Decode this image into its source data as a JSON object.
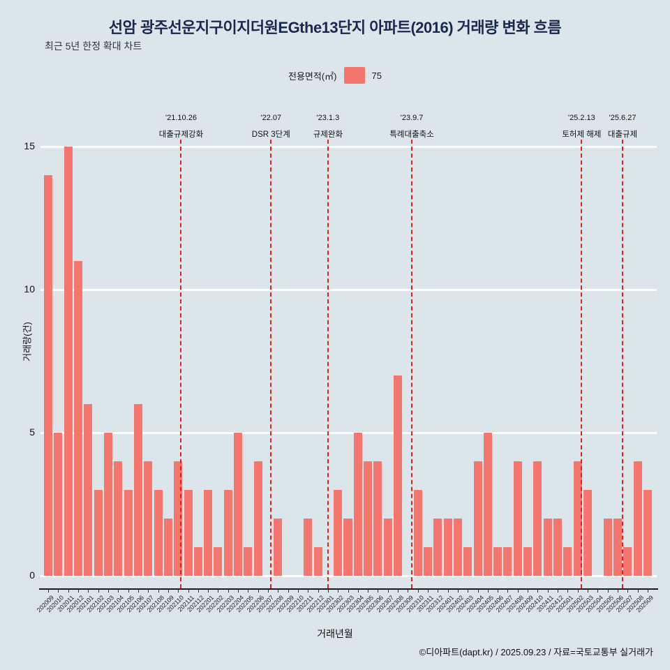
{
  "header": {
    "title": "선암 광주선운지구이지더원EGthe13단지 아파트(2016) 거래량 변화 흐름",
    "subtitle": "최근 5년 한정 확대 차트"
  },
  "legend": {
    "label": "전용면적(㎡)",
    "value": "75",
    "swatch_color": "#f4766e"
  },
  "footer": {
    "credit": "©디아파트(dapt.kr) / 2025.09.23 / 자료=국토교통부 실거래가"
  },
  "chart_data": {
    "type": "bar",
    "title": "선암 광주선운지구이지더원EGthe13단지 아파트(2016) 거래량 변화 흐름",
    "xlabel": "거래년월",
    "ylabel": "거래량(건)",
    "ylim": [
      0,
      15
    ],
    "yticks": [
      0,
      5,
      10,
      15
    ],
    "bar_color": "#f4766e",
    "grid": "horizontal-white-lines",
    "legend_position": "top-center",
    "categories": [
      "202009",
      "202010",
      "202011",
      "202012",
      "202101",
      "202102",
      "202103",
      "202104",
      "202105",
      "202106",
      "202107",
      "202108",
      "202109",
      "202110",
      "202111",
      "202112",
      "202201",
      "202202",
      "202203",
      "202204",
      "202205",
      "202206",
      "202207",
      "202208",
      "202209",
      "202210",
      "202211",
      "202212",
      "202301",
      "202302",
      "202303",
      "202304",
      "202305",
      "202306",
      "202307",
      "202308",
      "202309",
      "202310",
      "202311",
      "202312",
      "202401",
      "202402",
      "202403",
      "202404",
      "202405",
      "202406",
      "202407",
      "202408",
      "202409",
      "202410",
      "202411",
      "202412",
      "202501",
      "202502",
      "202503",
      "202504",
      "202505",
      "202506",
      "202507",
      "202508",
      "202509"
    ],
    "values": [
      14,
      5,
      15,
      11,
      6,
      3,
      5,
      4,
      3,
      6,
      4,
      3,
      2,
      4,
      3,
      1,
      3,
      1,
      3,
      5,
      1,
      4,
      0,
      2,
      0,
      0,
      2,
      1,
      0,
      3,
      2,
      5,
      4,
      4,
      2,
      7,
      0,
      3,
      1,
      2,
      2,
      2,
      1,
      4,
      5,
      1,
      1,
      4,
      1,
      4,
      2,
      2,
      1,
      4,
      3,
      0,
      2,
      2,
      1,
      4,
      3
    ],
    "annotations": [
      {
        "date": "'21.10.26",
        "label": "대출규제강화",
        "month_index": 13.3
      },
      {
        "date": "'22.07",
        "label": "DSR 3단계",
        "month_index": 22.3
      },
      {
        "date": "'23.1.3",
        "label": "규제완화",
        "month_index": 28.0
      },
      {
        "date": "'23.9.7",
        "label": "특례대출축소",
        "month_index": 36.4
      },
      {
        "date": "'25.2.13",
        "label": "토허제 해제",
        "month_index": 53.4
      },
      {
        "date": "'25.6.27",
        "label": "대출규제",
        "month_index": 57.5
      }
    ]
  }
}
